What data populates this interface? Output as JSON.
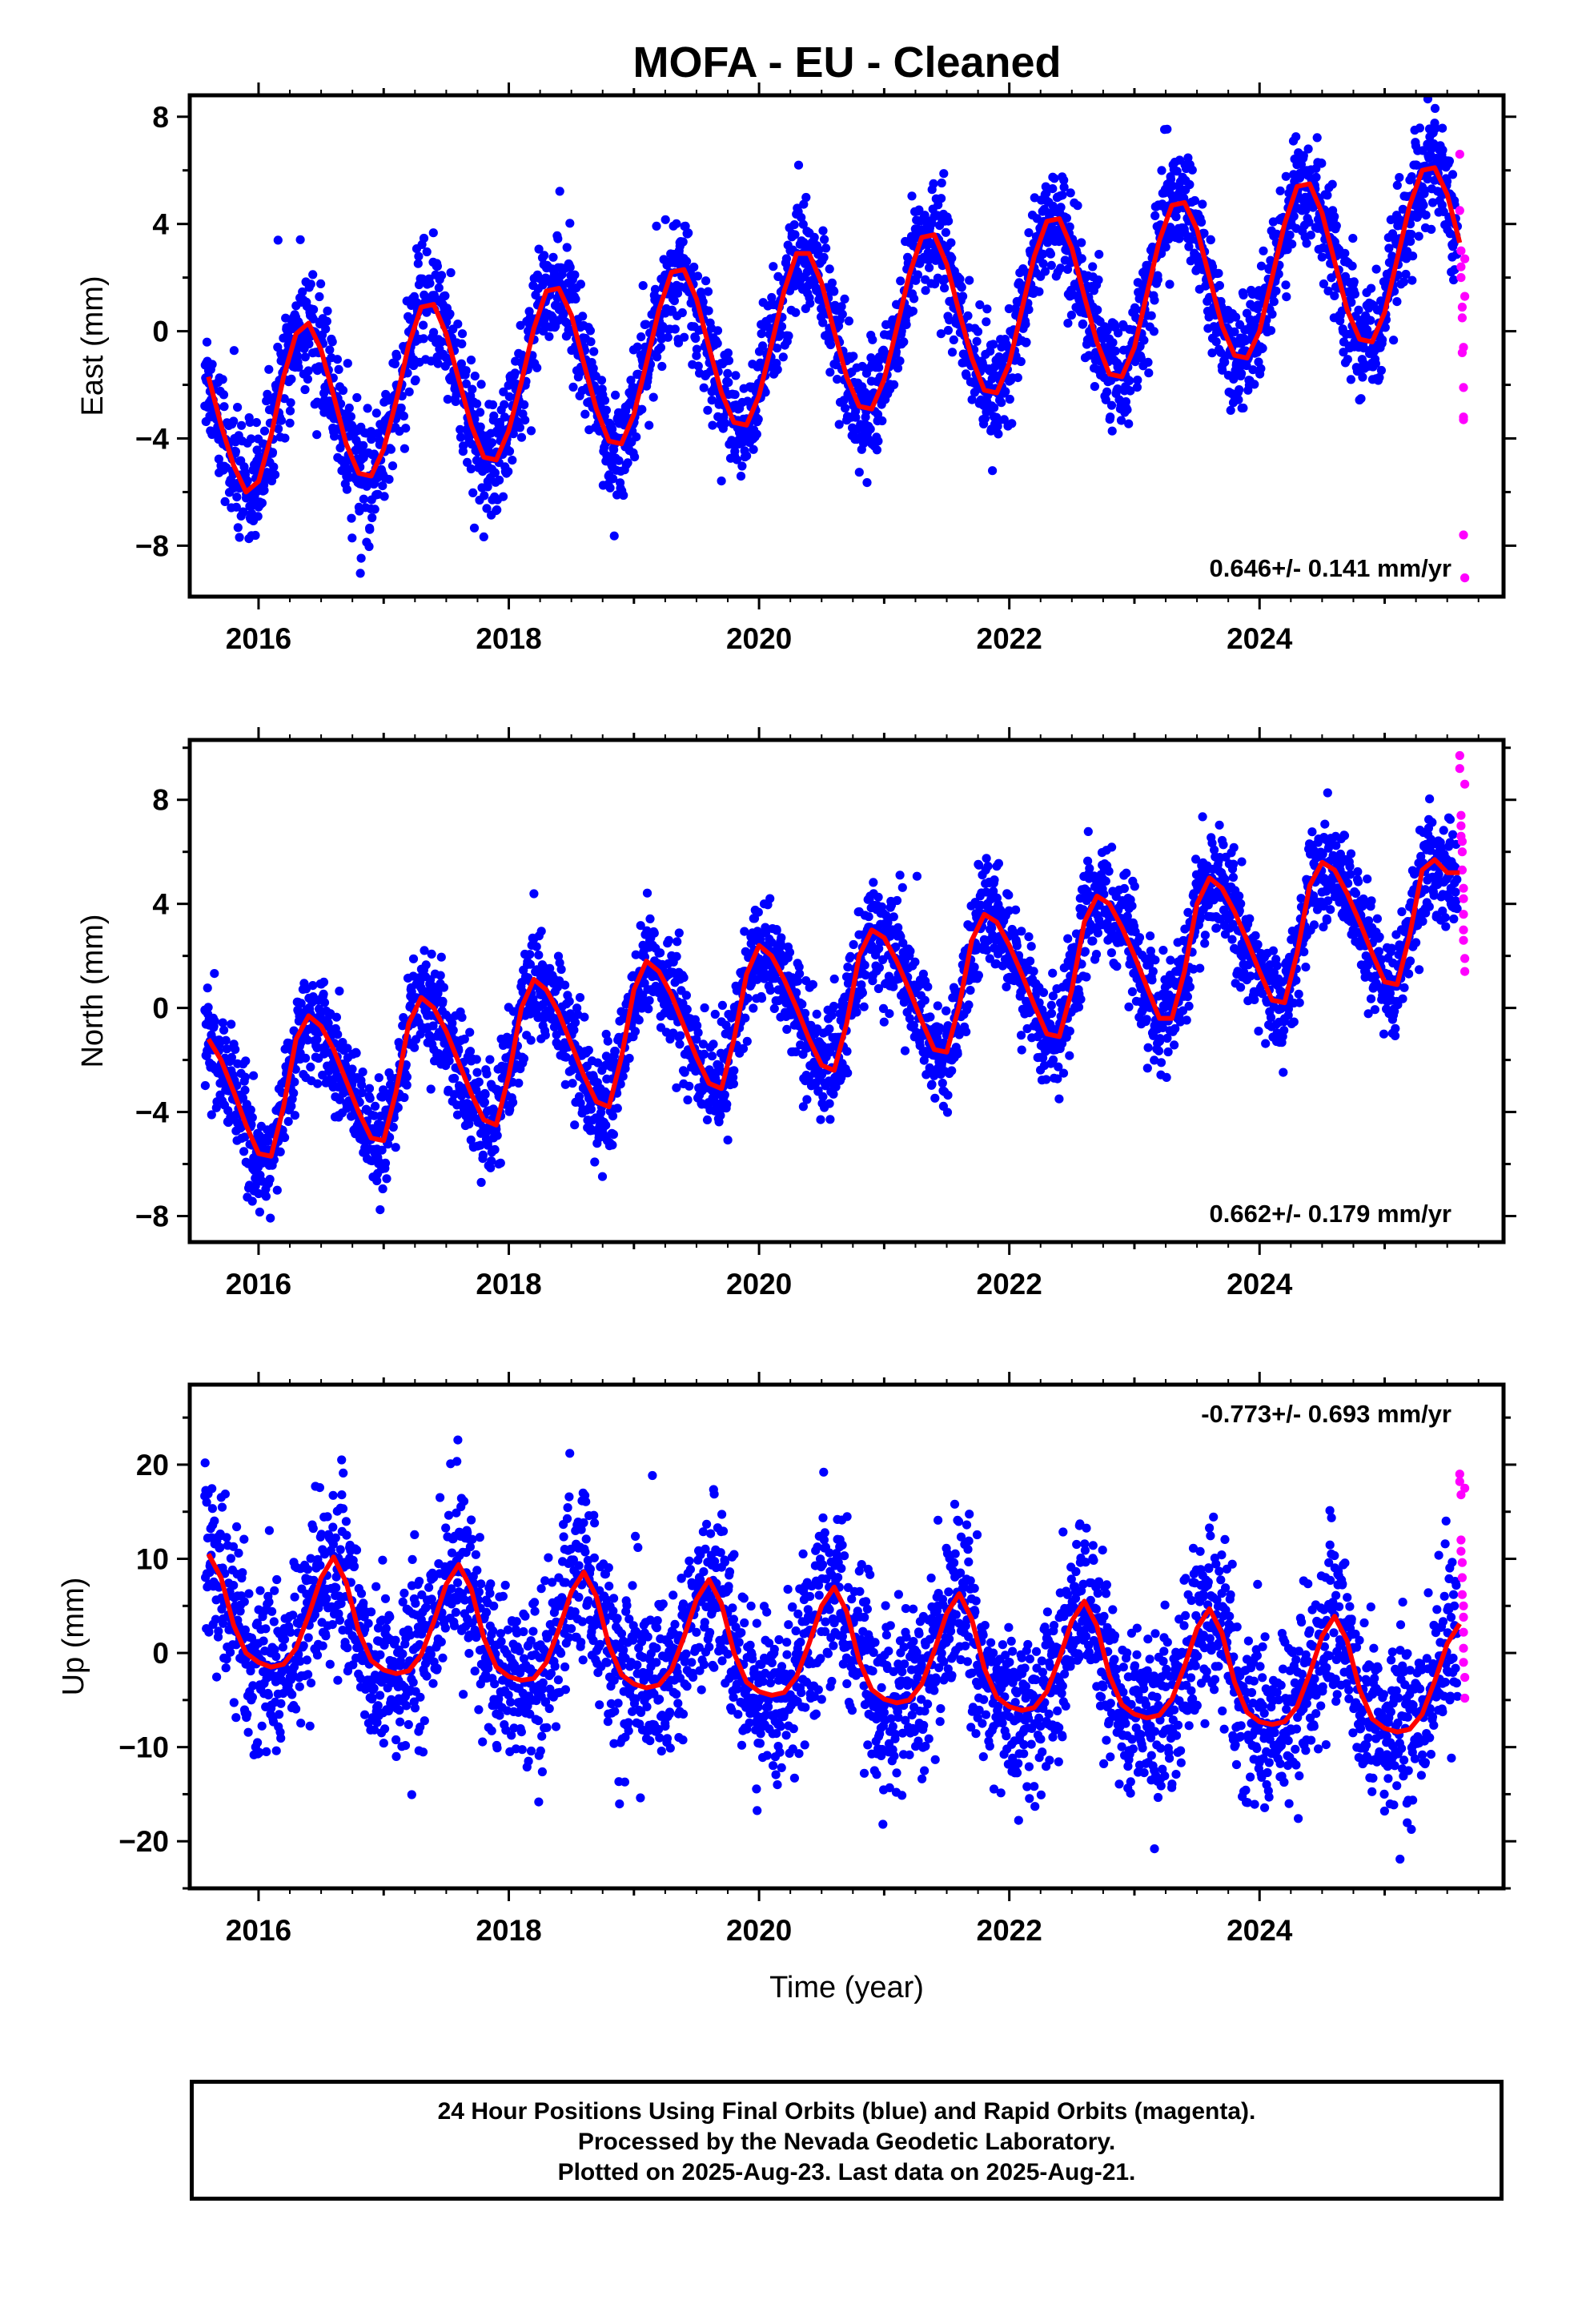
{
  "title": "MOFA  - EU - Cleaned",
  "colors": {
    "final": "#0000ff",
    "rapid": "#ff00ff",
    "model": "#ff0000",
    "frame": "#000000"
  },
  "footer": {
    "line1": "24 Hour Positions Using Final Orbits (blue) and Rapid Orbits (magenta).",
    "line2": "Processed by the Nevada Geodetic Laboratory.",
    "line3": "Plotted on 2025-Aug-23. Last data on 2025-Aug-21."
  },
  "chart_data": [
    {
      "type": "scatter",
      "ylabel": "East (mm)",
      "xlabel": "",
      "xlim": [
        2015.45,
        2025.95
      ],
      "ylim": [
        -9.9,
        8.8
      ],
      "xticks": [
        2016,
        2018,
        2020,
        2022,
        2024
      ],
      "yticks": [
        -8,
        -4,
        0,
        4,
        8
      ],
      "rate_label": "0.646+/- 0.141 mm/yr",
      "rate_position": "bottom-right",
      "model_series": {
        "name": "",
        "x": [
          2015.6,
          2015.7,
          2015.8,
          2015.9,
          2016.0,
          2016.1,
          2016.2,
          2016.3,
          2016.4,
          2016.5,
          2016.6,
          2016.7,
          2016.8,
          2016.9,
          2017.0,
          2017.1,
          2017.2,
          2017.3,
          2017.4,
          2017.5,
          2017.6,
          2017.7,
          2017.8,
          2017.9,
          2018.0,
          2018.1,
          2018.2,
          2018.3,
          2018.4,
          2018.5,
          2018.6,
          2018.7,
          2018.8,
          2018.9,
          2019.0,
          2019.1,
          2019.2,
          2019.3,
          2019.4,
          2019.5,
          2019.6,
          2019.7,
          2019.8,
          2019.9,
          2020.0,
          2020.1,
          2020.2,
          2020.3,
          2020.4,
          2020.5,
          2020.6,
          2020.7,
          2020.8,
          2020.9,
          2021.0,
          2021.1,
          2021.2,
          2021.3,
          2021.4,
          2021.5,
          2021.6,
          2021.7,
          2021.8,
          2021.9,
          2022.0,
          2022.1,
          2022.2,
          2022.3,
          2022.4,
          2022.5,
          2022.6,
          2022.7,
          2022.8,
          2022.9,
          2023.0,
          2023.1,
          2023.2,
          2023.3,
          2023.4,
          2023.5,
          2023.6,
          2023.7,
          2023.8,
          2023.9,
          2024.0,
          2024.1,
          2024.2,
          2024.3,
          2024.4,
          2024.5,
          2024.6,
          2024.7,
          2024.8,
          2024.9,
          2025.0,
          2025.1,
          2025.2,
          2025.3,
          2025.4,
          2025.5,
          2025.6
        ],
        "y": [
          -1.7,
          -3.5,
          -5.0,
          -6.0,
          -5.6,
          -3.9,
          -1.7,
          -0.1,
          0.3,
          -0.7,
          -2.4,
          -4.2,
          -5.3,
          -5.4,
          -4.4,
          -2.6,
          -0.5,
          0.9,
          1.0,
          -0.1,
          -1.8,
          -3.5,
          -4.7,
          -4.8,
          -3.7,
          -1.9,
          0.1,
          1.5,
          1.6,
          0.6,
          -1.2,
          -2.9,
          -4.1,
          -4.2,
          -3.1,
          -1.2,
          0.8,
          2.2,
          2.3,
          1.2,
          -0.6,
          -2.3,
          -3.4,
          -3.5,
          -2.4,
          -0.5,
          1.5,
          2.9,
          2.9,
          1.8,
          0.0,
          -1.7,
          -2.8,
          -2.9,
          -1.8,
          0.1,
          2.1,
          3.5,
          3.6,
          2.5,
          0.7,
          -1.0,
          -2.2,
          -2.3,
          -1.2,
          0.8,
          2.8,
          4.1,
          4.2,
          3.1,
          1.3,
          -0.4,
          -1.6,
          -1.7,
          -0.6,
          1.4,
          3.4,
          4.7,
          4.8,
          3.8,
          2.0,
          0.2,
          -0.9,
          -1.0,
          0.0,
          2.0,
          4.0,
          5.4,
          5.5,
          4.4,
          2.6,
          0.8,
          -0.3,
          -0.4,
          0.7,
          2.7,
          4.7,
          6.0,
          6.1,
          5.1,
          3.3
        ]
      },
      "rapid_series": {
        "name": "",
        "x": [
          2025.6,
          2025.6,
          2025.61,
          2025.61,
          2025.61,
          2025.62,
          2025.62,
          2025.62,
          2025.63,
          2025.63,
          2025.63,
          2025.63,
          2025.63,
          2025.64,
          2025.64,
          2025.64
        ],
        "y": [
          6.6,
          4.5,
          3.0,
          2.4,
          2.0,
          0.9,
          0.5,
          -0.8,
          -0.6,
          -2.1,
          -3.3,
          -3.2,
          -7.6,
          -9.2,
          1.3,
          2.7
        ]
      },
      "final_series": {
        "name": "",
        "n_points": 3300
      }
    },
    {
      "type": "scatter",
      "ylabel": "North (mm)",
      "xlabel": "",
      "xlim": [
        2015.45,
        2025.95
      ],
      "ylim": [
        -9.0,
        10.3
      ],
      "xticks": [
        2016,
        2018,
        2020,
        2022,
        2024
      ],
      "yticks": [
        -8,
        -4,
        0,
        4,
        8
      ],
      "rate_label": "0.662+/- 0.179 mm/yr",
      "rate_position": "bottom-right",
      "model_series": {
        "name": "",
        "x": [
          2015.6,
          2015.7,
          2015.8,
          2015.9,
          2016.0,
          2016.1,
          2016.2,
          2016.3,
          2016.4,
          2016.5,
          2016.6,
          2016.7,
          2016.8,
          2016.9,
          2017.0,
          2017.1,
          2017.2,
          2017.3,
          2017.4,
          2017.5,
          2017.6,
          2017.7,
          2017.8,
          2017.9,
          2018.0,
          2018.1,
          2018.2,
          2018.3,
          2018.4,
          2018.5,
          2018.6,
          2018.7,
          2018.8,
          2018.9,
          2019.0,
          2019.1,
          2019.2,
          2019.3,
          2019.4,
          2019.5,
          2019.6,
          2019.7,
          2019.8,
          2019.9,
          2020.0,
          2020.1,
          2020.2,
          2020.3,
          2020.4,
          2020.5,
          2020.6,
          2020.7,
          2020.8,
          2020.9,
          2021.0,
          2021.1,
          2021.2,
          2021.3,
          2021.4,
          2021.5,
          2021.6,
          2021.7,
          2021.8,
          2021.9,
          2022.0,
          2022.1,
          2022.2,
          2022.3,
          2022.4,
          2022.5,
          2022.6,
          2022.7,
          2022.8,
          2022.9,
          2023.0,
          2023.1,
          2023.2,
          2023.3,
          2023.4,
          2023.5,
          2023.6,
          2023.7,
          2023.8,
          2023.9,
          2024.0,
          2024.1,
          2024.2,
          2024.3,
          2024.4,
          2024.5,
          2024.6,
          2024.7,
          2024.8,
          2024.9,
          2025.0,
          2025.1,
          2025.2,
          2025.3,
          2025.4,
          2025.5,
          2025.6
        ],
        "y": [
          -1.2,
          -2.0,
          -3.2,
          -4.5,
          -5.6,
          -5.7,
          -3.8,
          -1.2,
          -0.3,
          -0.7,
          -1.6,
          -2.8,
          -4.0,
          -5.0,
          -5.1,
          -3.2,
          -0.6,
          0.4,
          0.0,
          -0.9,
          -2.1,
          -3.3,
          -4.3,
          -4.5,
          -2.6,
          0.0,
          1.1,
          0.7,
          -0.2,
          -1.4,
          -2.6,
          -3.6,
          -3.8,
          -1.9,
          0.7,
          1.8,
          1.4,
          0.5,
          -0.7,
          -1.9,
          -2.9,
          -3.1,
          -1.2,
          1.3,
          2.4,
          2.0,
          1.1,
          0.0,
          -1.2,
          -2.2,
          -2.4,
          -0.6,
          2.0,
          3.0,
          2.7,
          1.8,
          0.7,
          -0.5,
          -1.6,
          -1.7,
          0.1,
          2.6,
          3.6,
          3.3,
          2.4,
          1.3,
          0.1,
          -1.0,
          -1.1,
          0.7,
          3.3,
          4.3,
          4.0,
          3.1,
          2.0,
          0.8,
          -0.4,
          -0.4,
          1.4,
          4.0,
          5.0,
          4.6,
          3.7,
          2.6,
          1.4,
          0.3,
          0.2,
          2.1,
          4.7,
          5.6,
          5.3,
          4.4,
          3.3,
          2.1,
          1.0,
          0.9,
          2.8,
          5.3,
          5.7,
          5.2,
          5.2
        ]
      },
      "rapid_series": {
        "name": "",
        "x": [
          2025.6,
          2025.6,
          2025.61,
          2025.61,
          2025.61,
          2025.62,
          2025.62,
          2025.62,
          2025.63,
          2025.63,
          2025.63,
          2025.63,
          2025.63,
          2025.64,
          2025.64,
          2025.64
        ],
        "y": [
          9.7,
          9.2,
          7.4,
          7.0,
          6.6,
          6.4,
          6.0,
          5.3,
          4.6,
          4.2,
          3.6,
          3.0,
          2.6,
          1.9,
          1.4,
          8.6
        ]
      },
      "final_series": {
        "name": "",
        "n_points": 3300
      }
    },
    {
      "type": "scatter",
      "ylabel": "Up (mm)",
      "xlabel": "Time (year)",
      "xlim": [
        2015.45,
        2025.95
      ],
      "ylim": [
        -25,
        28.5
      ],
      "xticks": [
        2016,
        2018,
        2020,
        2022,
        2024
      ],
      "yticks": [
        -20,
        -10,
        0,
        10,
        20
      ],
      "rate_label": "-0.773+/- 0.693 mm/yr",
      "rate_position": "top-right",
      "model_series": {
        "name": "",
        "x": [
          2015.6,
          2015.7,
          2015.8,
          2015.9,
          2016.0,
          2016.1,
          2016.2,
          2016.3,
          2016.4,
          2016.5,
          2016.6,
          2016.7,
          2016.8,
          2016.9,
          2017.0,
          2017.1,
          2017.2,
          2017.3,
          2017.4,
          2017.5,
          2017.6,
          2017.7,
          2017.8,
          2017.9,
          2018.0,
          2018.1,
          2018.2,
          2018.3,
          2018.4,
          2018.5,
          2018.6,
          2018.7,
          2018.8,
          2018.9,
          2019.0,
          2019.1,
          2019.2,
          2019.3,
          2019.4,
          2019.5,
          2019.6,
          2019.7,
          2019.8,
          2019.9,
          2020.0,
          2020.1,
          2020.2,
          2020.3,
          2020.4,
          2020.5,
          2020.6,
          2020.7,
          2020.8,
          2020.9,
          2021.0,
          2021.1,
          2021.2,
          2021.3,
          2021.4,
          2021.5,
          2021.6,
          2021.7,
          2021.8,
          2021.9,
          2022.0,
          2022.1,
          2022.2,
          2022.3,
          2022.4,
          2022.5,
          2022.6,
          2022.7,
          2022.8,
          2022.9,
          2023.0,
          2023.1,
          2023.2,
          2023.3,
          2023.4,
          2023.5,
          2023.6,
          2023.7,
          2023.8,
          2023.9,
          2024.0,
          2024.1,
          2024.2,
          2024.3,
          2024.4,
          2024.5,
          2024.6,
          2024.7,
          2024.8,
          2024.9,
          2025.0,
          2025.1,
          2025.2,
          2025.3,
          2025.4,
          2025.5,
          2025.6
        ],
        "y": [
          10.5,
          8.0,
          3.0,
          0.0,
          -1.0,
          -1.5,
          -1.2,
          0.5,
          4.0,
          8.0,
          10.2,
          7.5,
          2.3,
          -0.8,
          -1.8,
          -2.2,
          -1.9,
          -0.2,
          3.3,
          7.3,
          9.4,
          6.8,
          1.6,
          -1.5,
          -2.5,
          -2.9,
          -2.7,
          -1.0,
          2.5,
          6.5,
          8.6,
          6.0,
          0.8,
          -2.3,
          -3.3,
          -3.7,
          -3.4,
          -1.8,
          1.7,
          5.7,
          7.8,
          5.2,
          0.0,
          -3.1,
          -4.1,
          -4.5,
          -4.2,
          -2.5,
          1.0,
          5.0,
          7.0,
          4.4,
          -0.8,
          -3.9,
          -4.9,
          -5.3,
          -5.0,
          -3.3,
          0.2,
          4.2,
          6.3,
          3.6,
          -1.6,
          -4.7,
          -5.7,
          -6.1,
          -5.8,
          -4.1,
          -0.6,
          3.4,
          5.5,
          2.9,
          -2.4,
          -5.5,
          -6.5,
          -6.9,
          -6.6,
          -4.9,
          -1.4,
          2.6,
          4.7,
          2.1,
          -3.1,
          -6.3,
          -7.3,
          -7.6,
          -7.3,
          -5.7,
          -2.2,
          1.8,
          3.9,
          1.3,
          -3.9,
          -7.0,
          -8.0,
          -8.4,
          -8.1,
          -6.5,
          -3.0,
          1.0,
          3.1
        ]
      },
      "rapid_series": {
        "name": "",
        "x": [
          2025.6,
          2025.6,
          2025.61,
          2025.61,
          2025.61,
          2025.62,
          2025.62,
          2025.62,
          2025.63,
          2025.63,
          2025.63,
          2025.63,
          2025.63,
          2025.64,
          2025.64,
          2025.64
        ],
        "y": [
          19.0,
          18.2,
          16.8,
          12.0,
          10.8,
          9.6,
          8.0,
          6.2,
          5.0,
          3.8,
          2.2,
          0.5,
          -1.0,
          -2.6,
          -4.8,
          17.5
        ]
      },
      "final_series": {
        "name": "",
        "n_points": 3300
      }
    }
  ]
}
